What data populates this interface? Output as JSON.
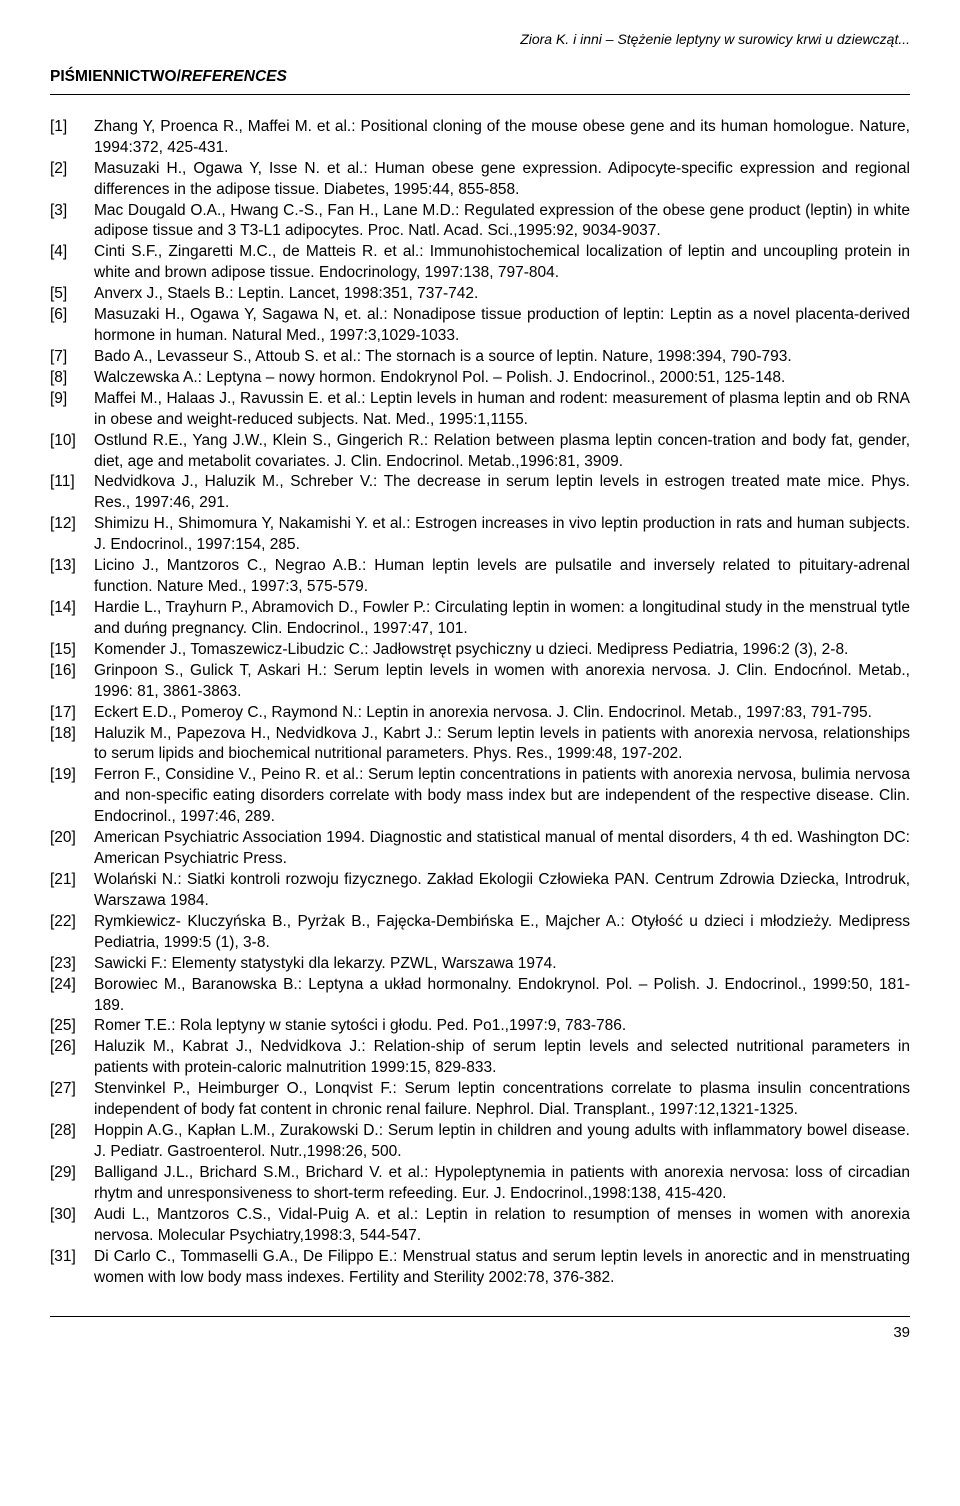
{
  "running_head": "Ziora K. i inni – Stężenie leptyny w surowicy krwi u dziewcząt...",
  "section_title_main": "PIŚMIENNICTWO/",
  "section_title_em": "REFERENCES",
  "page_number": "39",
  "references": [
    {
      "n": "[1]",
      "t": "Zhang Y, Proenca R., Maffei M. et al.: Positional cloning of the mouse obese gene and its human homologue. Nature, 1994:372, 425-431."
    },
    {
      "n": "[2]",
      "t": "Masuzaki H., Ogawa Y, Isse N. et al.: Human obese gene expression. Adipocyte-specific expression and regional differences in the adipose tissue. Diabetes, 1995:44, 855-858."
    },
    {
      "n": "[3]",
      "t": "Mac Dougald O.A., Hwang C.-S., Fan H., Lane M.D.: Regulated expression of the obese gene product (leptin) in white adipose tissue and 3 T3-L1 adipocytes. Proc. Natl. Acad. Sci.,1995:92, 9034-9037."
    },
    {
      "n": "[4]",
      "t": "Cinti S.F., Zingaretti M.C., de Matteis R. et al.: Immunohistochemical localization of leptin and uncoupling protein in white and brown adipose tissue. Endocrinology, 1997:138, 797-804."
    },
    {
      "n": "[5]",
      "t": "Anverx J., Staels B.: Leptin. Lancet, 1998:351, 737-742."
    },
    {
      "n": "[6]",
      "t": "Masuzaki H., Ogawa Y, Sagawa N, et. al.: Nonadipose tissue production of leptin: Leptin as a novel placenta-derived hormone in human. Natural Med., 1997:3,1029-1033."
    },
    {
      "n": "[7]",
      "t": "Bado A., Levasseur S., Attoub S. et al.: The stornach is a source of leptin. Nature, 1998:394, 790-793."
    },
    {
      "n": "[8]",
      "t": "Walczewska A.: Leptyna – nowy hormon. Endokrynol Pol. – Polish. J. Endocrinol., 2000:51, 125-148."
    },
    {
      "n": "[9]",
      "t": "Maffei M., Halaas J., Ravussin E. et al.: Leptin levels in human and rodent: measurement of plasma leptin and ob RNA in obese and weight-reduced subjects. Nat. Med., 1995:1,1155."
    },
    {
      "n": "[10]",
      "t": "Ostlund R.E., Yang J.W., Klein S., Gingerich R.: Relation between plasma leptin concen-tration and body fat, gender, diet, age and metabolit covariates. J. Clin. Endocrinol. Metab.,1996:81, 3909."
    },
    {
      "n": "[11]",
      "t": "Nedvidkova J., Haluzik M., Schreber V.: The decrease in serum leptin levels in estrogen treated mate mice. Phys. Res., 1997:46, 291."
    },
    {
      "n": "[12]",
      "t": "Shimizu H., Shimomura Y, Nakamishi Y. et al.: Estrogen increases in vivo leptin production in rats and human subjects. J. Endocrinol., 1997:154, 285."
    },
    {
      "n": "[13]",
      "t": "Licino J., Mantzoros C., Negrao A.B.: Human leptin levels are pulsatile and inversely related to pituitary-adrenal function. Nature Med., 1997:3, 575-579."
    },
    {
      "n": "[14]",
      "t": "Hardie L., Trayhurn P., Abramovich D., Fowler P.: Circulating leptin in women: a longitudinal study in the menstrual tytle and duńng pregnancy. Clin. Endocrinol., 1997:47, 101."
    },
    {
      "n": "[15]",
      "t": "Komender J., Tomaszewicz-Libudzic C.: Jadłowstręt psychiczny u dzieci. Medipress Pediatria, 1996:2 (3), 2-8."
    },
    {
      "n": "[16]",
      "t": "Grinpoon S., Gulick T, Askari H.: Serum leptin levels in women with anorexia nervosa. J. Clin. Endocńnol. Metab., 1996: 81, 3861-3863."
    },
    {
      "n": "[17]",
      "t": "Eckert E.D., Pomeroy C., Raymond N.: Leptin in anorexia nervosa. J. Clin. Endocrinol. Metab., 1997:83, 791-795."
    },
    {
      "n": "[18]",
      "t": "Haluzik M., Papezova H., Nedvidkova J., Kabrt J.: Serum leptin levels in patients with anorexia nervosa, relationships to serum lipids and biochemical nutritional parameters. Phys. Res., 1999:48, 197-202."
    },
    {
      "n": "[19]",
      "t": "Ferron F., Considine V., Peino R. et al.: Serum leptin concentrations in patients with anorexia nervosa, bulimia nervosa and non-specific eating disorders correlate with body mass index but are independent of the respective disease. Clin. Endocrinol., 1997:46, 289."
    },
    {
      "n": "[20]",
      "t": "American Psychiatric Association 1994. Diagnostic and statistical manual of mental disorders, 4 th ed. Washington DC: American Psychiatric Press."
    },
    {
      "n": "[21]",
      "t": "Wolański N.: Siatki kontroli rozwoju fizycznego. Zakład Ekologii Człowieka PAN. Centrum Zdrowia Dziecka, Introdruk, Warszawa 1984."
    },
    {
      "n": "[22]",
      "t": "Rymkiewicz- Kluczyńska B., Pyrżak B., Fajęcka-Dembińska E., Majcher A.: Otyłość u dzieci i młodzieży. Medipress Pediatria, 1999:5 (1), 3-8."
    },
    {
      "n": "[23]",
      "t": "Sawicki F.: Elementy statystyki dla lekarzy. PZWL, Warszawa 1974."
    },
    {
      "n": "[24]",
      "t": "Borowiec M., Baranowska B.: Leptyna a układ hormonalny. Endokrynol. Pol. – Polish. J. Endocrinol., 1999:50, 181-189."
    },
    {
      "n": "[25]",
      "t": "Romer T.E.: Rola leptyny w stanie sytości i głodu. Ped. Po1.,1997:9, 783-786."
    },
    {
      "n": "[26]",
      "t": "Haluzik M., Kabrat J., Nedvidkova J.: Relation-ship of serum leptin levels and selected nutritional parameters in patients with protein-caloric malnutrition 1999:15, 829-833."
    },
    {
      "n": "[27]",
      "t": "Stenvinkel P., Heimburger O., Lonqvist F.: Serum leptin concentrations correlate to plasma insulin concentrations independent of body fat content in chronic renal failure. Nephrol. Dial. Transplant., 1997:12,1321-1325."
    },
    {
      "n": "[28]",
      "t": "Hoppin A.G., Kapłan L.M., Zurakowski D.: Serum leptin in children and young adults with inflammatory bowel disease. J. Pediatr. Gastroenterol. Nutr.,1998:26, 500."
    },
    {
      "n": "[29]",
      "t": "Balligand J.L., Brichard S.M., Brichard V. et al.: Hypoleptynemia in patients with anorexia nervosa: loss of circadian rhytm and unresponsiveness to short-term refeeding. Eur. J. Endocrinol.,1998:138, 415-420."
    },
    {
      "n": "[30]",
      "t": "Audi L., Mantzoros C.S., Vidal-Puig A. et al.: Leptin in relation to resumption of menses in women with anorexia nervosa. Molecular Psychiatry,1998:3, 544-547."
    },
    {
      "n": "[31]",
      "t": "Di Carlo C., Tommaselli G.A., De Filippo E.: Menstrual status and serum leptin levels in anorectic and in menstruating women with low body mass indexes. Fertility and Sterility 2002:78, 376-382."
    }
  ]
}
